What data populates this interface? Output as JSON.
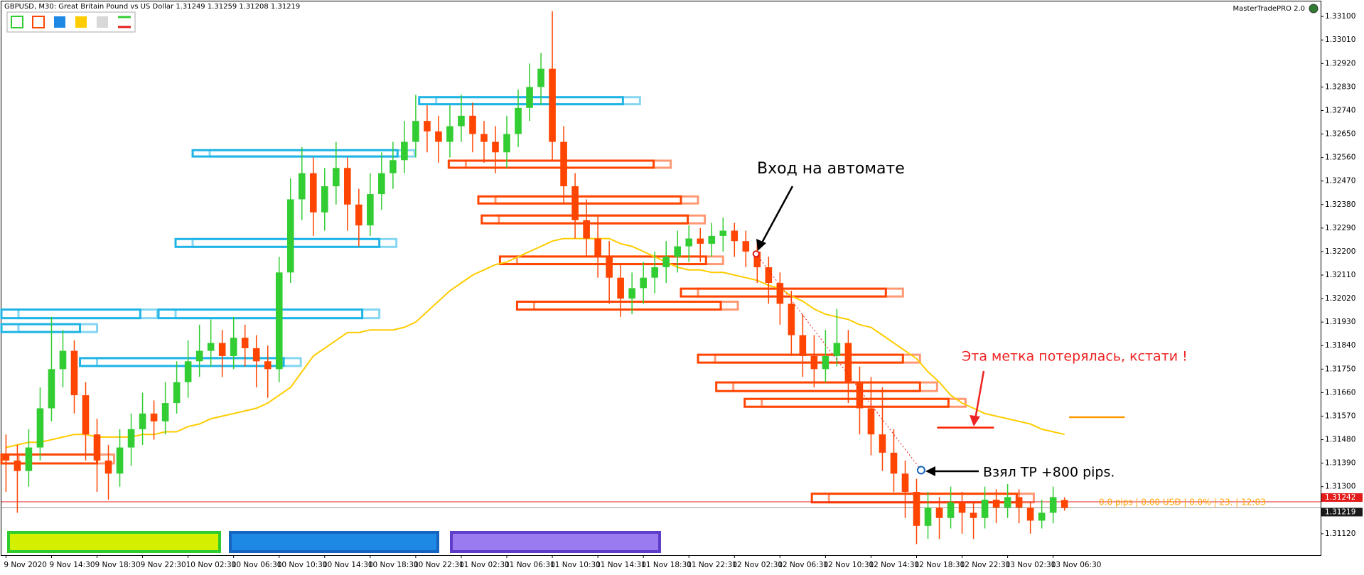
{
  "chart_data": {
    "type": "candlestick",
    "title": "GBPUSD, M30:  Great Britain Pound vs US Dollar  1.31249 1.31259 1.31208 1.31219",
    "brand": "MasterTradePRO 2.0",
    "categories": [
      "9 Nov 2020",
      null,
      null,
      null,
      "9 Nov 14:30",
      null,
      null,
      null,
      "9 Nov 18:30",
      null,
      null,
      null,
      "9 Nov 22:30",
      null,
      null,
      null,
      "10 Nov 02:30",
      null,
      null,
      null,
      "10 Nov 06:30",
      null,
      null,
      null,
      "10 Nov 10:30",
      null,
      null,
      null,
      "10 Nov 14:30",
      null,
      null,
      null,
      "10 Nov 18:30",
      null,
      null,
      null,
      "10 Nov 22:30",
      null,
      null,
      null,
      "11 Nov 02:30",
      null,
      null,
      null,
      "11 Nov 06:30",
      null,
      null,
      null,
      "11 Nov 10:30",
      null,
      null,
      null,
      "11 Nov 14:30",
      null,
      null,
      null,
      "11 Nov 18:30",
      null,
      null,
      null,
      "11 Nov 22:30",
      null,
      null,
      null,
      "12 Nov 02:30",
      null,
      null,
      null,
      "12 Nov 06:30",
      null,
      null,
      null,
      "12 Nov 10:30",
      null,
      null,
      null,
      "12 Nov 14:30",
      null,
      null,
      null,
      "12 Nov 18:30",
      null,
      null,
      null,
      "12 Nov 22:30",
      null,
      null,
      null,
      "13 Nov 02:30",
      null,
      null,
      null,
      "13 Nov 06:30",
      null
    ],
    "ohlc": [
      [
        1.3142,
        1.315,
        1.3128,
        1.314
      ],
      [
        1.314,
        1.3146,
        1.312,
        1.3136
      ],
      [
        1.3136,
        1.3152,
        1.313,
        1.3145
      ],
      [
        1.3145,
        1.3168,
        1.314,
        1.316
      ],
      [
        1.316,
        1.3195,
        1.3155,
        1.3175
      ],
      [
        1.3175,
        1.319,
        1.3168,
        1.3182
      ],
      [
        1.3182,
        1.3186,
        1.3158,
        1.3165
      ],
      [
        1.3165,
        1.317,
        1.314,
        1.315
      ],
      [
        1.315,
        1.3156,
        1.3128,
        1.314
      ],
      [
        1.314,
        1.3146,
        1.3125,
        1.3135
      ],
      [
        1.3135,
        1.3152,
        1.313,
        1.3145
      ],
      [
        1.3145,
        1.3158,
        1.3138,
        1.3152
      ],
      [
        1.3152,
        1.3166,
        1.3146,
        1.3158
      ],
      [
        1.3158,
        1.3163,
        1.3148,
        1.3155
      ],
      [
        1.3155,
        1.317,
        1.315,
        1.3162
      ],
      [
        1.3162,
        1.3178,
        1.3158,
        1.317
      ],
      [
        1.317,
        1.3186,
        1.3164,
        1.3178
      ],
      [
        1.3178,
        1.3192,
        1.3172,
        1.3182
      ],
      [
        1.3182,
        1.3194,
        1.3176,
        1.3185
      ],
      [
        1.3185,
        1.319,
        1.3172,
        1.318
      ],
      [
        1.318,
        1.3195,
        1.3175,
        1.3187
      ],
      [
        1.3187,
        1.3192,
        1.3176,
        1.3183
      ],
      [
        1.3183,
        1.3188,
        1.3168,
        1.3178
      ],
      [
        1.3178,
        1.3184,
        1.3164,
        1.3175
      ],
      [
        1.3175,
        1.3218,
        1.317,
        1.3212
      ],
      [
        1.3212,
        1.3248,
        1.3208,
        1.324
      ],
      [
        1.324,
        1.326,
        1.3232,
        1.325
      ],
      [
        1.325,
        1.3256,
        1.3226,
        1.3235
      ],
      [
        1.3235,
        1.3252,
        1.3228,
        1.3245
      ],
      [
        1.3245,
        1.3262,
        1.3238,
        1.3252
      ],
      [
        1.3252,
        1.3256,
        1.3228,
        1.3238
      ],
      [
        1.3238,
        1.3244,
        1.3222,
        1.323
      ],
      [
        1.323,
        1.325,
        1.3226,
        1.3242
      ],
      [
        1.3242,
        1.3258,
        1.3236,
        1.325
      ],
      [
        1.325,
        1.3262,
        1.3244,
        1.3255
      ],
      [
        1.3255,
        1.327,
        1.325,
        1.3262
      ],
      [
        1.3262,
        1.328,
        1.3256,
        1.327
      ],
      [
        1.327,
        1.3276,
        1.3258,
        1.3266
      ],
      [
        1.3266,
        1.3272,
        1.3254,
        1.3262
      ],
      [
        1.3262,
        1.3276,
        1.3256,
        1.3268
      ],
      [
        1.3268,
        1.328,
        1.3262,
        1.3272
      ],
      [
        1.3272,
        1.3277,
        1.3258,
        1.3265
      ],
      [
        1.3265,
        1.327,
        1.3254,
        1.3262
      ],
      [
        1.3262,
        1.3268,
        1.325,
        1.3258
      ],
      [
        1.3258,
        1.3272,
        1.3252,
        1.3265
      ],
      [
        1.3265,
        1.3282,
        1.326,
        1.3275
      ],
      [
        1.3275,
        1.3292,
        1.327,
        1.3283
      ],
      [
        1.3283,
        1.3296,
        1.3276,
        1.329
      ],
      [
        1.329,
        1.3312,
        1.3255,
        1.3262
      ],
      [
        1.3262,
        1.3268,
        1.3238,
        1.3245
      ],
      [
        1.3245,
        1.325,
        1.3225,
        1.3232
      ],
      [
        1.3232,
        1.324,
        1.3218,
        1.3225
      ],
      [
        1.3225,
        1.3234,
        1.321,
        1.3218
      ],
      [
        1.3218,
        1.3224,
        1.32,
        1.321
      ],
      [
        1.321,
        1.3215,
        1.3195,
        1.3202
      ],
      [
        1.3202,
        1.3212,
        1.3196,
        1.3206
      ],
      [
        1.3206,
        1.3216,
        1.32,
        1.321
      ],
      [
        1.321,
        1.322,
        1.3204,
        1.3214
      ],
      [
        1.3214,
        1.3224,
        1.3208,
        1.3218
      ],
      [
        1.3218,
        1.3228,
        1.3212,
        1.3222
      ],
      [
        1.3222,
        1.323,
        1.3216,
        1.3225
      ],
      [
        1.3225,
        1.3229,
        1.3216,
        1.3223
      ],
      [
        1.3223,
        1.3231,
        1.3218,
        1.3226
      ],
      [
        1.3226,
        1.3233,
        1.322,
        1.3228
      ],
      [
        1.3228,
        1.3231,
        1.3218,
        1.3224
      ],
      [
        1.3224,
        1.3228,
        1.3214,
        1.322
      ],
      [
        1.322,
        1.3224,
        1.3208,
        1.3214
      ],
      [
        1.3214,
        1.3218,
        1.32,
        1.3208
      ],
      [
        1.3208,
        1.3212,
        1.3192,
        1.32
      ],
      [
        1.32,
        1.3205,
        1.318,
        1.3188
      ],
      [
        1.3188,
        1.3196,
        1.3172,
        1.318
      ],
      [
        1.318,
        1.3188,
        1.3168,
        1.3175
      ],
      [
        1.3175,
        1.319,
        1.317,
        1.318
      ],
      [
        1.318,
        1.3198,
        1.3176,
        1.3185
      ],
      [
        1.3185,
        1.319,
        1.3162,
        1.317
      ],
      [
        1.317,
        1.3176,
        1.315,
        1.316
      ],
      [
        1.316,
        1.3172,
        1.3142,
        1.315
      ],
      [
        1.315,
        1.3168,
        1.3136,
        1.3143
      ],
      [
        1.3143,
        1.3152,
        1.3128,
        1.3135
      ],
      [
        1.3135,
        1.314,
        1.3118,
        1.3128
      ],
      [
        1.3128,
        1.3133,
        1.3108,
        1.3115
      ],
      [
        1.3115,
        1.3128,
        1.311,
        1.3122
      ],
      [
        1.3122,
        1.3126,
        1.311,
        1.3118
      ],
      [
        1.3118,
        1.313,
        1.3114,
        1.3124
      ],
      [
        1.3124,
        1.3128,
        1.3112,
        1.312
      ],
      [
        1.312,
        1.3124,
        1.311,
        1.3118
      ],
      [
        1.3118,
        1.313,
        1.3114,
        1.3125
      ],
      [
        1.3125,
        1.3129,
        1.3116,
        1.3122
      ],
      [
        1.3122,
        1.3131,
        1.3118,
        1.3126
      ],
      [
        1.3126,
        1.3129,
        1.3116,
        1.3122
      ],
      [
        1.3122,
        1.3124,
        1.3112,
        1.3117
      ],
      [
        1.3117,
        1.3125,
        1.3114,
        1.312
      ],
      [
        1.312,
        1.313,
        1.3116,
        1.3126
      ],
      [
        1.31249,
        1.31259,
        1.31208,
        1.31219
      ]
    ],
    "up_color": "#32cd32",
    "down_color": "#ff4500",
    "ma": {
      "color": "#ffcc00",
      "values": [
        1.3145,
        1.3146,
        1.3147,
        1.3147,
        1.3148,
        1.3149,
        1.315,
        1.315,
        1.3149,
        1.3149,
        1.3149,
        1.3149,
        1.315,
        1.315,
        1.3151,
        1.3151,
        1.3153,
        1.3154,
        1.3156,
        1.3157,
        1.3158,
        1.3159,
        1.316,
        1.3162,
        1.3165,
        1.3168,
        1.3174,
        1.318,
        1.3183,
        1.3186,
        1.3189,
        1.3189,
        1.319,
        1.319,
        1.319,
        1.3191,
        1.3193,
        1.3197,
        1.3201,
        1.3205,
        1.3208,
        1.3211,
        1.3213,
        1.3215,
        1.3216,
        1.3218,
        1.322,
        1.3222,
        1.3224,
        1.3225,
        1.3225,
        1.3225,
        1.3225,
        1.3225,
        1.3223,
        1.3222,
        1.322,
        1.3218,
        1.3216,
        1.3214,
        1.3213,
        1.3213,
        1.3212,
        1.3212,
        1.3211,
        1.321,
        1.3209,
        1.3207,
        1.3206,
        1.3203,
        1.3201,
        1.3198,
        1.3196,
        1.3195,
        1.3194,
        1.3192,
        1.3191,
        1.3188,
        1.3185,
        1.3182,
        1.3179,
        1.3174,
        1.317,
        1.3165,
        1.3162,
        1.316,
        1.3158,
        1.3157,
        1.3156,
        1.3155,
        1.3154,
        1.3152,
        1.3151,
        1.315
      ]
    },
    "zones": [
      {
        "x": [
          -0.4,
          11.8
        ],
        "prices": [
          1.31978,
          1.31945
        ],
        "color": "#1fb4e6"
      },
      {
        "x": [
          -0.4,
          6.5
        ],
        "prices": [
          1.31922,
          1.31892
        ],
        "color": "#1fb4e6"
      },
      {
        "x": [
          13.4,
          31.3
        ],
        "prices": [
          1.31978,
          1.31945
        ],
        "color": "#1fb4e6"
      },
      {
        "x": [
          6.5,
          24.4
        ],
        "prices": [
          1.31792,
          1.31762
        ],
        "color": "#1fb4e6"
      },
      {
        "x": [
          14.9,
          32.8
        ],
        "prices": [
          1.32248,
          1.32218
        ],
        "color": "#1fb4e6"
      },
      {
        "x": [
          16.4,
          34.4
        ],
        "prices": [
          1.32588,
          1.32564
        ],
        "color": "#1fb4e6"
      },
      {
        "x": [
          36.3,
          54.2
        ],
        "prices": [
          1.32791,
          1.32764
        ],
        "color": "#1fb4e6"
      },
      {
        "x": [
          -0.4,
          8
        ],
        "prices": [
          1.31423,
          1.31389
        ],
        "color": "#ff4500"
      },
      {
        "x": [
          38.9,
          56.9
        ],
        "prices": [
          1.32548,
          1.32521
        ],
        "color": "#ff4500"
      },
      {
        "x": [
          41.5,
          59.3
        ],
        "prices": [
          1.32411,
          1.32384
        ],
        "color": "#ff4500"
      },
      {
        "x": [
          41.8,
          59.9
        ],
        "prices": [
          1.32338,
          1.32308
        ],
        "color": "#ff4500"
      },
      {
        "x": [
          43.4,
          61.5
        ],
        "prices": [
          1.32181,
          1.32152
        ],
        "color": "#ff4500"
      },
      {
        "x": [
          44.9,
          62.8
        ],
        "prices": [
          1.32008,
          1.31978
        ],
        "color": "#ff4500"
      },
      {
        "x": [
          59.3,
          77.3
        ],
        "prices": [
          1.32058,
          1.32028
        ],
        "color": "#ff4500"
      },
      {
        "x": [
          60.8,
          78.8
        ],
        "prices": [
          1.31805,
          1.31775
        ],
        "color": "#ff4500"
      },
      {
        "x": [
          62.4,
          80.3
        ],
        "prices": [
          1.31699,
          1.31666
        ],
        "color": "#ff4500"
      },
      {
        "x": [
          64.9,
          82.8
        ],
        "prices": [
          1.31636,
          1.31606
        ],
        "color": "#ff4500"
      },
      {
        "x": [
          70.8,
          88.8
        ],
        "prices": [
          1.31273,
          1.3124
        ],
        "color": "#ff4500"
      }
    ],
    "levels": [
      {
        "x": [
          81.8,
          86.8
        ],
        "price": 1.31526,
        "color": "#ff2000"
      },
      {
        "x": [
          93.4,
          98.3
        ],
        "price": 1.31566,
        "color": "#ff9900"
      }
    ],
    "trade": {
      "entry": {
        "x": 65.9,
        "price": 1.32191
      },
      "exit": {
        "x": 80.4,
        "price": 1.31363
      }
    },
    "price_lines": [
      {
        "value": 1.31242,
        "color": "#e31b1b"
      },
      {
        "value": 1.31219,
        "color": "#9a9a9a"
      }
    ],
    "xlim": [
      -0.4,
      115.5
    ],
    "ylim": [
      1.31038,
      1.33163
    ],
    "yticks": [
      {
        "value": 1.331,
        "label": "1.33100"
      },
      {
        "value": 1.3301,
        "label": "1.33010"
      },
      {
        "value": 1.3292,
        "label": "1.32920"
      },
      {
        "value": 1.3283,
        "label": "1.32830"
      },
      {
        "value": 1.3274,
        "label": "1.32740"
      },
      {
        "value": 1.3265,
        "label": "1.32650"
      },
      {
        "value": 1.3256,
        "label": "1.32560"
      },
      {
        "value": 1.3247,
        "label": "1.32470"
      },
      {
        "value": 1.3238,
        "label": "1.32380"
      },
      {
        "value": 1.3229,
        "label": "1.32290"
      },
      {
        "value": 1.322,
        "label": "1.32200"
      },
      {
        "value": 1.3211,
        "label": "1.32110"
      },
      {
        "value": 1.3202,
        "label": "1.32020"
      },
      {
        "value": 1.3193,
        "label": "1.31930"
      },
      {
        "value": 1.3184,
        "label": "1.31840"
      },
      {
        "value": 1.3175,
        "label": "1.31750"
      },
      {
        "value": 1.3166,
        "label": "1.31660"
      },
      {
        "value": 1.3157,
        "label": "1.31570"
      },
      {
        "value": 1.3148,
        "label": "1.31480"
      },
      {
        "value": 1.3139,
        "label": "1.31390"
      },
      {
        "value": 1.313,
        "label": "1.31300"
      },
      {
        "value": 1.3112,
        "label": "1.31120"
      }
    ],
    "annotations": {
      "entry": "Вход на автомате",
      "lost": "Эта метка потерялась, кстати !",
      "tp": "Взял TP +800 pips.",
      "info": "0.0 pips | 0.00 USD | 0.0% | 23. | 12:03"
    }
  }
}
